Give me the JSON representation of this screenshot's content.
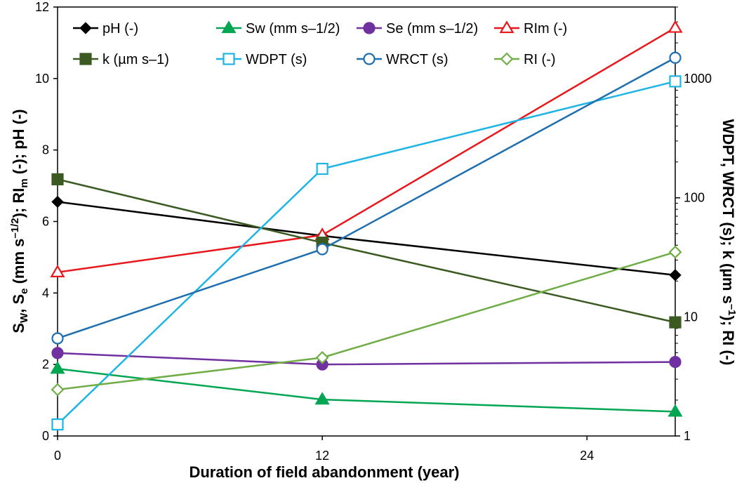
{
  "chart_data": {
    "type": "line",
    "x": [
      0,
      12,
      28
    ],
    "xlabel": "Duration of field abandonment (year)",
    "xticks": [
      "0",
      "12",
      "24"
    ],
    "xtick_values": [
      0,
      12,
      24
    ],
    "xlim": [
      0,
      28
    ],
    "left_axis": {
      "label_parts": [
        {
          "t": "S"
        },
        {
          "t": "W",
          "sub": true
        },
        {
          "t": ", S"
        },
        {
          "t": "e",
          "sub": true
        },
        {
          "t": " (mm s"
        },
        {
          "t": "–1/2",
          "sup": true
        },
        {
          "t": "); RI"
        },
        {
          "t": "m",
          "sub": true
        },
        {
          "t": " (-); pH (-)"
        }
      ],
      "ylim": [
        0,
        12
      ],
      "ticks": [
        "0",
        "2",
        "4",
        "6",
        "8",
        "10",
        "12"
      ],
      "tick_values": [
        0,
        2,
        4,
        6,
        8,
        10,
        12
      ]
    },
    "right_axis": {
      "label_parts": [
        {
          "t": "WDPT, WRCT (s); k (µm s"
        },
        {
          "t": "–1",
          "sup": true
        },
        {
          "t": "); RI (-)"
        }
      ],
      "scale": "log",
      "ylim": [
        1,
        4000
      ],
      "ticks": [
        "1",
        "10",
        "100",
        "1000"
      ],
      "tick_values": [
        1,
        10,
        100,
        1000
      ]
    },
    "legend_position": "top, inside plot",
    "series": [
      {
        "name": "pH (-)",
        "axis": "left",
        "values": [
          6.55,
          5.6,
          4.5
        ],
        "color": "#000000",
        "marker": "diamond",
        "filled": true
      },
      {
        "name": "Sw (mm s–1/2)",
        "axis": "left",
        "values": [
          1.88,
          1.02,
          0.68
        ],
        "color": "#00a651",
        "marker": "triangle",
        "filled": true
      },
      {
        "name": "Se (mm s–1/2)",
        "axis": "left",
        "values": [
          2.32,
          2.0,
          2.07
        ],
        "color": "#7030a0",
        "marker": "circle",
        "filled": true
      },
      {
        "name": "RIm (-)",
        "axis": "left",
        "values": [
          4.58,
          5.62,
          11.42
        ],
        "color": "#e8171b",
        "marker": "triangle",
        "filled": false
      },
      {
        "name": "k (µm s–1)",
        "axis": "right",
        "values": [
          143,
          42,
          9
        ],
        "color": "#3a5a22",
        "marker": "square",
        "filled": true
      },
      {
        "name": "WDPT (s)",
        "axis": "right",
        "values": [
          1.25,
          175,
          950
        ],
        "color": "#1eb4e6",
        "marker": "square",
        "filled": false
      },
      {
        "name": "WRCT (s)",
        "axis": "right",
        "values": [
          6.6,
          37,
          1500
        ],
        "color": "#1f6fb0",
        "marker": "circle",
        "filled": false
      },
      {
        "name": "RI (-)",
        "axis": "right",
        "values": [
          2.45,
          4.55,
          35
        ],
        "color": "#70ad47",
        "marker": "diamond",
        "filled": false
      }
    ]
  }
}
